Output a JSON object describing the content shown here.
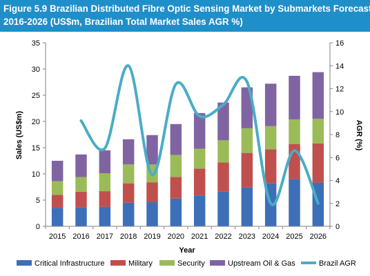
{
  "figure": {
    "title_line1": "Figure 5.9 Brazilian Distributed Fibre Optic Sensing Market by Submarkets Forecast",
    "title_line2": "2016-2026 (US$m, Brazilian Total Market Sales AGR %)"
  },
  "colors": {
    "header_bg": "#1f8fc9",
    "Critical Infrastructure": "#3d6fb8",
    "Military": "#c0504d",
    "Security": "#9bbb59",
    "Upstream Oil & Gas": "#8064a2",
    "Brazil AGR": "#4bacc6"
  },
  "chart_data": {
    "type": "bar",
    "stacked": true,
    "categories": [
      "2015",
      "2016",
      "2017",
      "2018",
      "2019",
      "2020",
      "2021",
      "2022",
      "2023",
      "2024",
      "2025",
      "2026"
    ],
    "series": [
      {
        "name": "Critical Infrastructure",
        "values": [
          3.5,
          3.6,
          3.7,
          4.5,
          4.6,
          5.3,
          5.9,
          6.6,
          7.4,
          8.2,
          9.0,
          8.3
        ]
      },
      {
        "name": "Military",
        "values": [
          2.5,
          3.0,
          3.0,
          3.7,
          3.8,
          4.1,
          5.1,
          5.6,
          6.6,
          6.5,
          6.7,
          7.5
        ]
      },
      {
        "name": "Security",
        "values": [
          2.6,
          2.8,
          3.4,
          3.6,
          3.4,
          4.2,
          3.8,
          4.2,
          4.7,
          4.4,
          4.7,
          4.7
        ]
      },
      {
        "name": "Upstream Oil & Gas",
        "values": [
          3.9,
          4.3,
          4.4,
          4.8,
          5.6,
          5.9,
          6.8,
          7.2,
          7.8,
          8.1,
          8.3,
          8.9
        ]
      }
    ],
    "line_series": {
      "name": "Brazil AGR",
      "axis": "right",
      "x": [
        "2016",
        "2017",
        "2018",
        "2019",
        "2020",
        "2021",
        "2022",
        "2023",
        "2024",
        "2025",
        "2026"
      ],
      "values": [
        9.2,
        6.8,
        14.0,
        4.5,
        12.4,
        9.6,
        10.6,
        12.6,
        2.0,
        6.6,
        2.0
      ]
    },
    "xlabel": "Year",
    "ylabel": "Sales (US$m)",
    "y2label": "AGR (%)",
    "ylim": [
      0,
      35
    ],
    "yticks": [
      "0",
      "5",
      "10",
      "15",
      "20",
      "25",
      "30",
      "35"
    ],
    "y2lim": [
      0,
      16
    ],
    "y2ticks": [
      "0",
      "2",
      "4",
      "6",
      "8",
      "10",
      "12",
      "14",
      "16"
    ],
    "grid": false,
    "legend_position": "bottom"
  }
}
